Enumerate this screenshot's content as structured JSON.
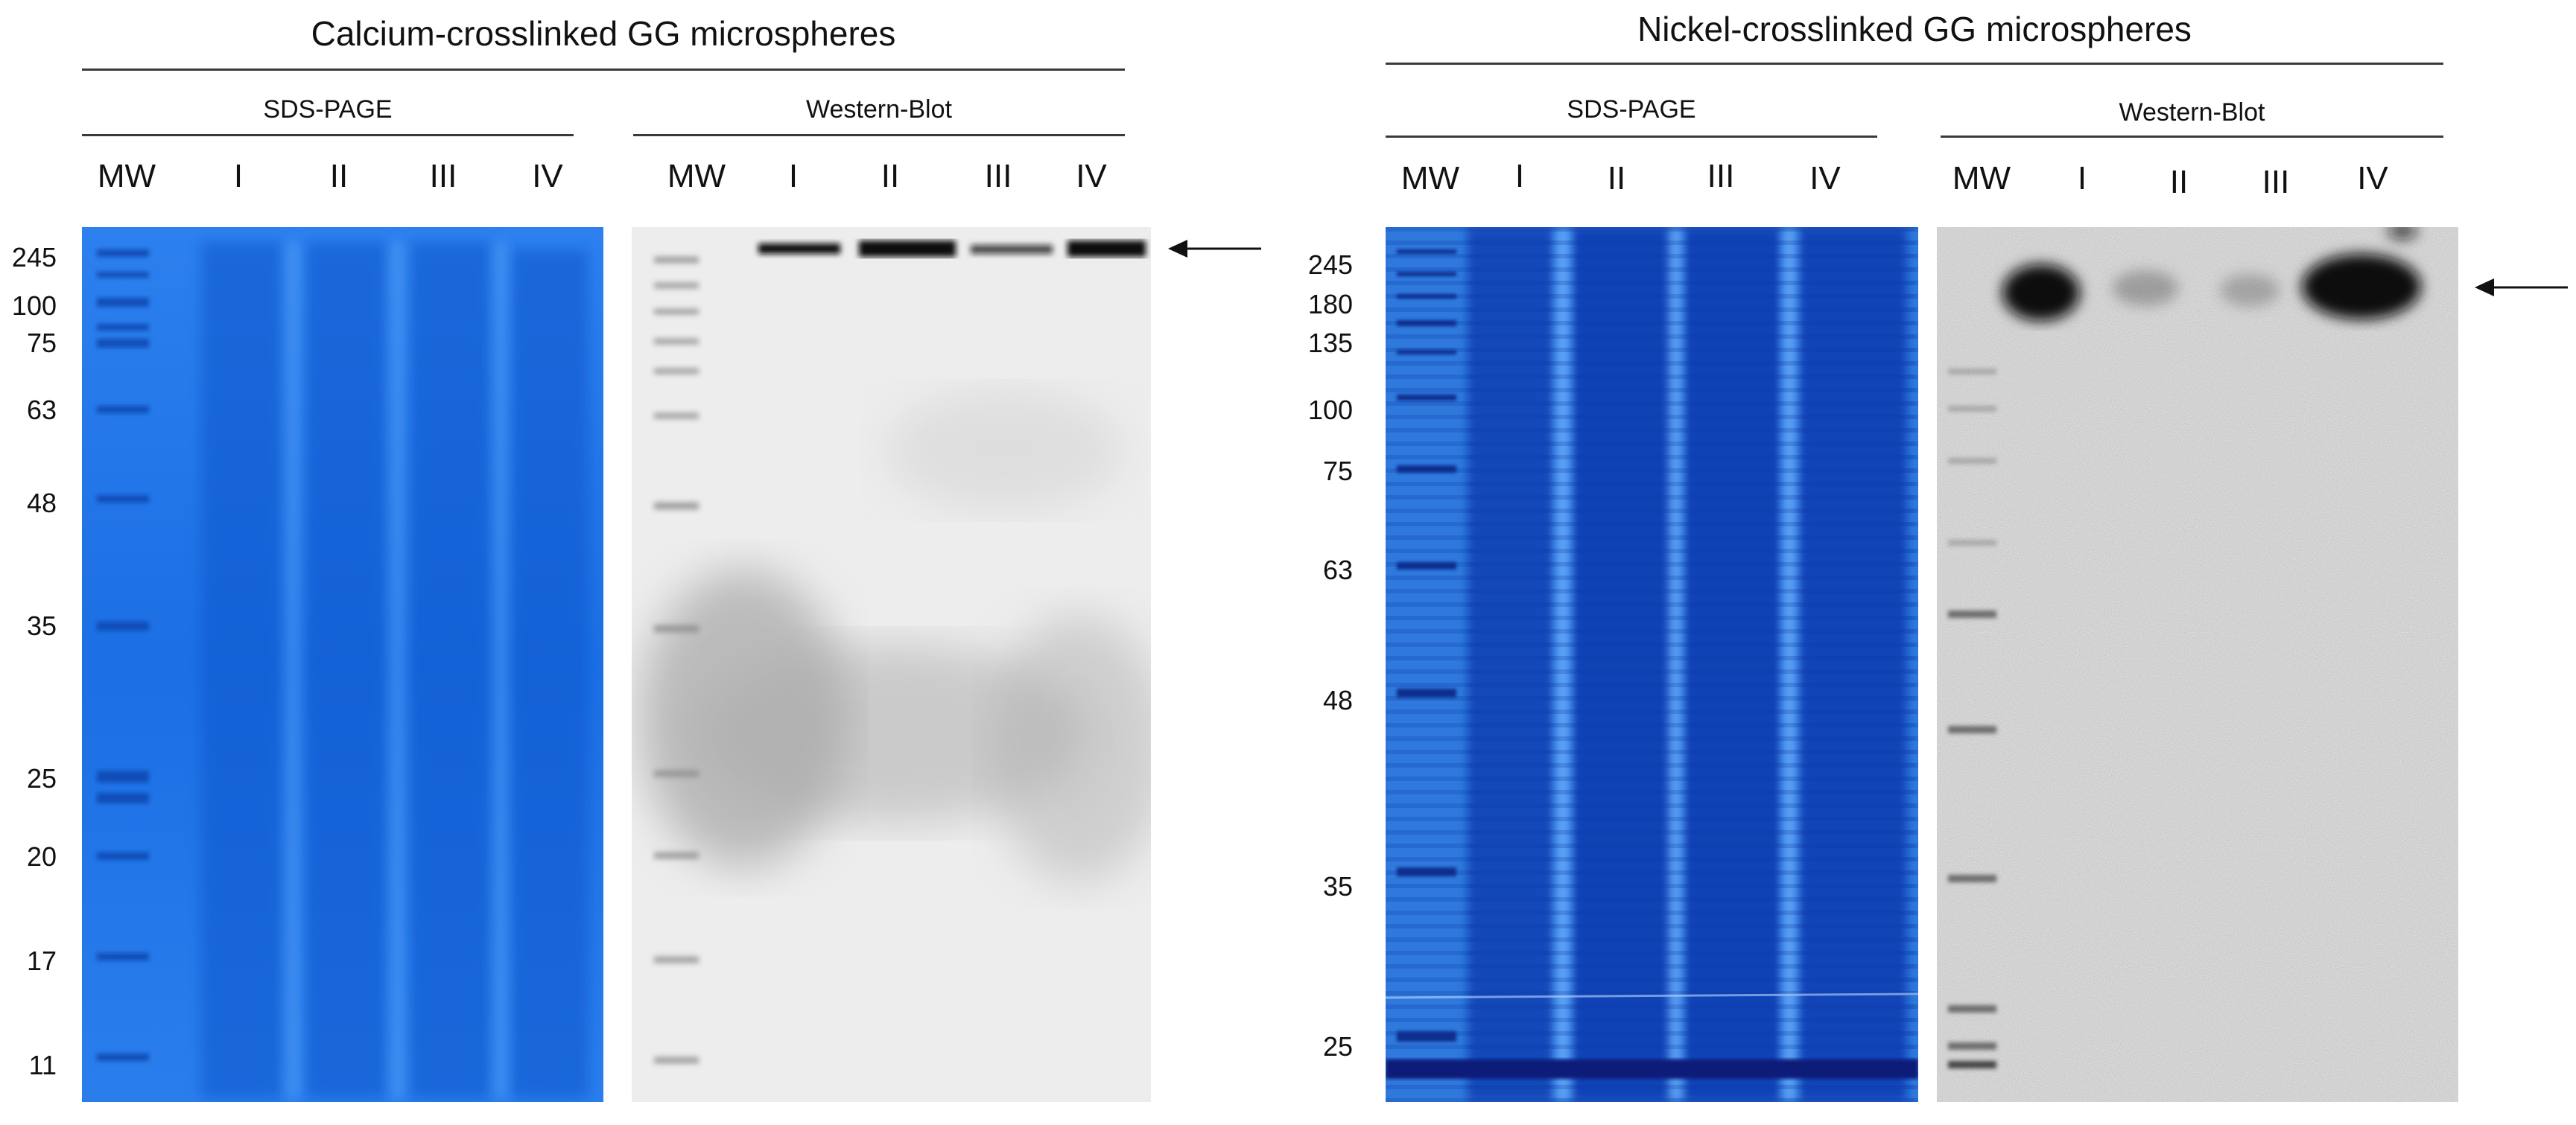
{
  "panels": [
    {
      "title": "Calcium-crosslinked GG microspheres",
      "sds": {
        "label": "SDS-PAGE",
        "lanes": [
          "MW",
          "I",
          "II",
          "III",
          "IV"
        ]
      },
      "wb": {
        "label": "Western-Blot",
        "lanes": [
          "MW",
          "I",
          "II",
          "III",
          "IV"
        ]
      },
      "mw_markers": [
        "245",
        "100",
        "75",
        "63",
        "48",
        "35",
        "25",
        "20",
        "17",
        "11"
      ]
    },
    {
      "title": "Nickel-crosslinked GG microspheres",
      "sds": {
        "label": "SDS-PAGE",
        "lanes": [
          "MW",
          "I",
          "II",
          "III",
          "IV"
        ]
      },
      "wb": {
        "label": "Western-Blot",
        "lanes": [
          "MW",
          "I",
          "II",
          "III",
          "IV"
        ]
      },
      "mw_markers": [
        "245",
        "180",
        "135",
        "100",
        "75",
        "63",
        "48",
        "35",
        "25"
      ]
    }
  ],
  "colors": {
    "calcium_gel": "#1e73e6",
    "nickel_gel": "#1a56c8",
    "blot_background": "#ebebeb",
    "band": "#111111"
  }
}
